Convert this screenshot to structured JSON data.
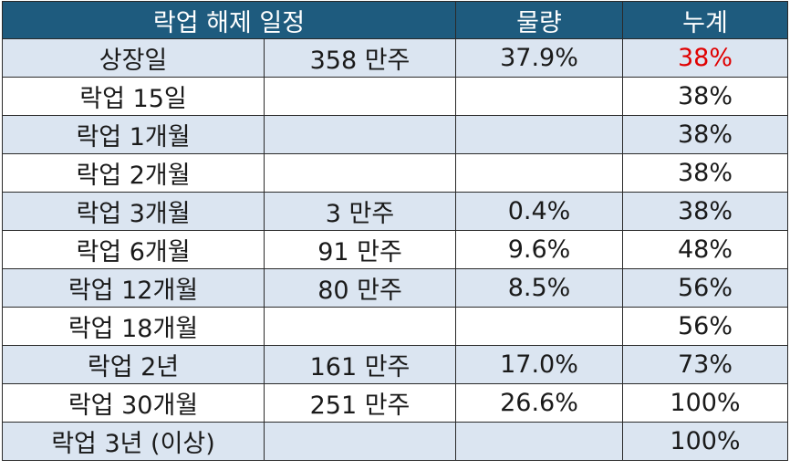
{
  "header": [
    "락업 해제 일정",
    "물량",
    "누계"
  ],
  "table": {
    "rows": [
      [
        "상장일",
        "358 만주",
        "37.9%",
        "38%"
      ],
      [
        "락업 15일",
        null,
        null,
        "38%"
      ],
      [
        "락업 1개월",
        null,
        null,
        "38%"
      ],
      [
        "락업 2개월",
        null,
        null,
        "38%"
      ],
      [
        "락업 3개월",
        "3 만주",
        "0.4%",
        "38%"
      ],
      [
        "락업 6개월",
        "91 만주",
        "9.6%",
        "48%"
      ],
      [
        "락업 12개월",
        "80 만주",
        "8.5%",
        "56%"
      ],
      [
        "락업 18개월",
        null,
        null,
        "56%"
      ],
      [
        "락업 2년",
        "161 만주",
        "17.0%",
        "73%"
      ],
      [
        "락업 30개월",
        "251 만주",
        "26.6%",
        "100%"
      ],
      [
        "락업 3년 (이상)",
        null,
        null,
        "100%"
      ]
    ]
  }
}
